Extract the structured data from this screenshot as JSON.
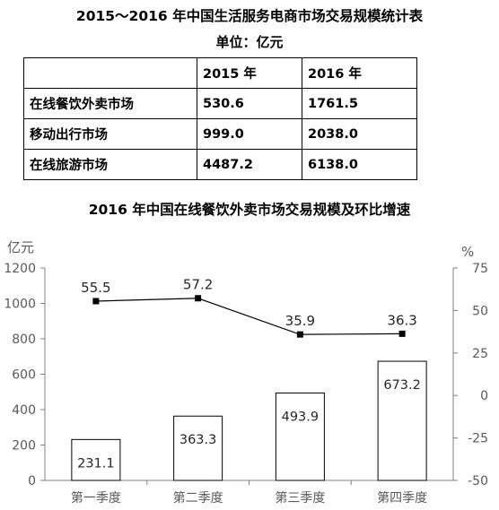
{
  "header": {
    "title": "2015～2016 年中国生活服务电商市场交易规模统计表",
    "unit": "单位：亿元"
  },
  "table": {
    "columns": [
      "",
      "2015 年",
      "2016 年"
    ],
    "rows": [
      [
        "在线餐饮外卖市场",
        "530.6",
        "1761.5"
      ],
      [
        "移动出行市场",
        "999.0",
        "2038.0"
      ],
      [
        "在线旅游市场",
        "4487.2",
        "6138.0"
      ]
    ]
  },
  "chart_title": "2016 年中国在线餐饮外卖市场交易规模及环比增速",
  "chart_data": {
    "type": "bar",
    "title": "2016 年中国在线餐饮外卖市场交易规模及环比增速",
    "categories": [
      "第一季度",
      "第二季度",
      "第三季度",
      "第四季度"
    ],
    "series": [
      {
        "type": "bar",
        "axis": "left",
        "values": [
          231.1,
          363.3,
          493.9,
          673.2
        ]
      },
      {
        "type": "line",
        "axis": "right",
        "values": [
          55.5,
          57.2,
          35.9,
          36.3
        ]
      }
    ],
    "ylabel_left": "亿元",
    "ylabel_right": "%",
    "ylim_left": [
      0,
      1200
    ],
    "yticks_left": [
      0,
      200,
      400,
      600,
      800,
      1000,
      1200
    ],
    "ylim_right": [
      -50,
      75
    ],
    "yticks_right": [
      -50,
      -25,
      0,
      25,
      50,
      75
    ],
    "grid": false,
    "legend": "none"
  },
  "colors": {
    "axis": "#808080",
    "bar_fill": "#ffffff",
    "bar_stroke": "#000000",
    "line": "#000000",
    "tick_text": "#595959"
  }
}
